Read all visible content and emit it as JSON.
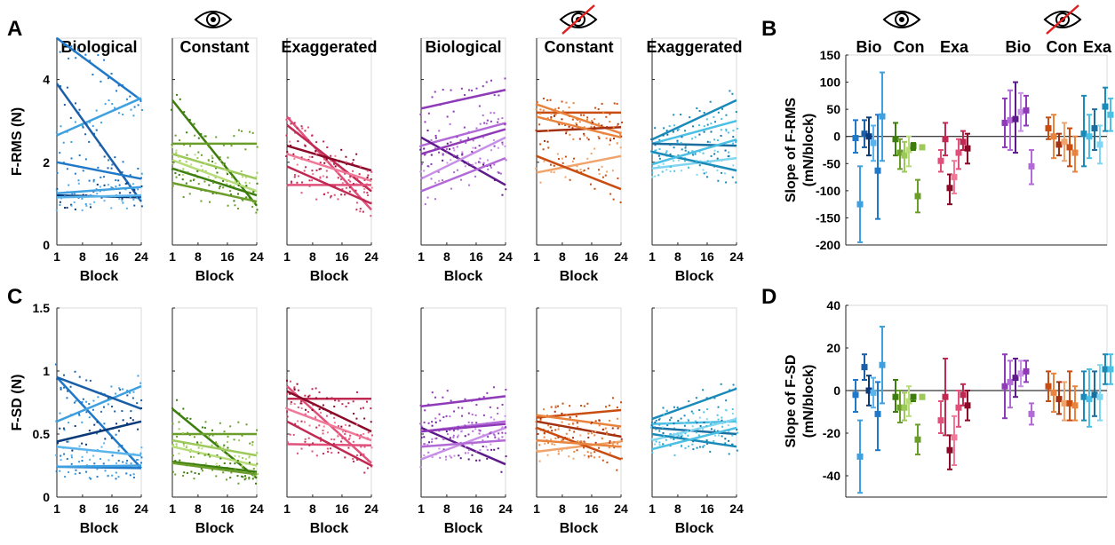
{
  "panel_letters": [
    "A",
    "B",
    "C",
    "D"
  ],
  "icon_names": [
    "eye-icon",
    "eye-crossed-icon"
  ],
  "colors": {
    "bio": [
      "#1f78c8",
      "#3fa0e0",
      "#1b5fa8",
      "#0b3a7a",
      "#5ab4ec"
    ],
    "con": [
      "#3c7d0e",
      "#6b9d2a",
      "#9cc95a",
      "#b8dc7a"
    ],
    "exa": [
      "#e0507a",
      "#c02a52",
      "#8a0a28",
      "#f07898"
    ],
    "bio_nv": [
      "#8f3bb8",
      "#b26ad6",
      "#5e1a8a",
      "#c890e6"
    ],
    "con_nv": [
      "#c94d10",
      "#e8843d",
      "#a33010",
      "#f0a46b"
    ],
    "exa_nv": [
      "#1a8ab8",
      "#4cc0e4",
      "#1a6ea0",
      "#80d6f0"
    ],
    "zero_line": "#000000"
  },
  "chart_data": [
    {
      "panel": "A",
      "type": "scatter",
      "ylabel": "F-RMS (N)",
      "xlabel": "Block",
      "ylim": [
        0,
        5
      ],
      "yticks": [
        "0",
        "2",
        "4"
      ],
      "xticks": [
        "1",
        "8",
        "16",
        "24"
      ],
      "subplots": [
        {
          "title": "Biological",
          "group": "bio",
          "lines": [
            [
              5.0,
              3.5
            ],
            [
              2.65,
              3.55
            ],
            [
              3.9,
              1.05
            ],
            [
              1.2,
              1.15
            ],
            [
              1.15,
              1.2
            ],
            [
              2.0,
              1.6
            ],
            [
              1.25,
              1.4
            ]
          ]
        },
        {
          "title": "Constant",
          "group": "con",
          "lines": [
            [
              3.5,
              0.95
            ],
            [
              2.45,
              2.45
            ],
            [
              2.2,
              1.6
            ],
            [
              2.05,
              1.3
            ],
            [
              1.85,
              1.2
            ],
            [
              1.5,
              1.05
            ]
          ]
        },
        {
          "title": "Exaggerated",
          "group": "exa",
          "lines": [
            [
              3.1,
              0.85
            ],
            [
              2.9,
              1.3
            ],
            [
              2.4,
              1.8
            ],
            [
              2.2,
              1.55
            ],
            [
              1.45,
              1.45
            ],
            [
              1.9,
              1.0
            ]
          ]
        },
        {
          "title": "Biological",
          "group": "bio_nv",
          "lines": [
            [
              3.3,
              3.75
            ],
            [
              2.4,
              2.95
            ],
            [
              2.6,
              1.45
            ],
            [
              1.6,
              2.6
            ],
            [
              2.2,
              2.8
            ],
            [
              1.3,
              2.1
            ]
          ]
        },
        {
          "title": "Constant",
          "group": "con_nv",
          "lines": [
            [
              3.2,
              3.2
            ],
            [
              3.4,
              2.7
            ],
            [
              2.75,
              2.85
            ],
            [
              1.75,
              2.15
            ],
            [
              2.15,
              1.35
            ],
            [
              3.1,
              2.6
            ]
          ]
        },
        {
          "title": "Exaggerated",
          "group": "exa_nv",
          "lines": [
            [
              2.55,
              3.5
            ],
            [
              2.45,
              3.0
            ],
            [
              2.45,
              2.4
            ],
            [
              1.85,
              2.1
            ],
            [
              2.25,
              1.8
            ],
            [
              1.95,
              2.55
            ]
          ]
        }
      ]
    },
    {
      "panel": "C",
      "type": "scatter",
      "ylabel": "F-SD (N)",
      "xlabel": "Block",
      "ylim": [
        0,
        1.5
      ],
      "yticks": [
        "0",
        "0.5",
        "1",
        "1.5"
      ],
      "xticks": [
        "1",
        "8",
        "16",
        "24"
      ],
      "subplots": [
        {
          "title": "",
          "group": "bio",
          "lines": [
            [
              0.95,
              0.23
            ],
            [
              0.6,
              0.88
            ],
            [
              0.95,
              0.7
            ],
            [
              0.44,
              0.6
            ],
            [
              0.4,
              0.33
            ],
            [
              0.24,
              0.23
            ],
            [
              0.24,
              0.25
            ]
          ]
        },
        {
          "title": "",
          "group": "con",
          "lines": [
            [
              0.7,
              0.15
            ],
            [
              0.5,
              0.5
            ],
            [
              0.45,
              0.33
            ],
            [
              0.4,
              0.25
            ],
            [
              0.28,
              0.2
            ],
            [
              0.27,
              0.18
            ]
          ]
        },
        {
          "title": "",
          "group": "exa",
          "lines": [
            [
              0.88,
              0.27
            ],
            [
              0.78,
              0.78
            ],
            [
              0.84,
              0.52
            ],
            [
              0.7,
              0.45
            ],
            [
              0.42,
              0.41
            ],
            [
              0.6,
              0.25
            ]
          ]
        },
        {
          "title": "",
          "group": "bio_nv",
          "lines": [
            [
              0.72,
              0.8
            ],
            [
              0.52,
              0.6
            ],
            [
              0.55,
              0.26
            ],
            [
              0.3,
              0.55
            ],
            [
              0.52,
              0.58
            ],
            [
              0.4,
              0.45
            ]
          ]
        },
        {
          "title": "",
          "group": "con_nv",
          "lines": [
            [
              0.63,
              0.69
            ],
            [
              0.65,
              0.56
            ],
            [
              0.6,
              0.48
            ],
            [
              0.36,
              0.44
            ],
            [
              0.55,
              0.3
            ],
            [
              0.45,
              0.4
            ]
          ]
        },
        {
          "title": "",
          "group": "exa_nv",
          "lines": [
            [
              0.62,
              0.86
            ],
            [
              0.58,
              0.6
            ],
            [
              0.55,
              0.5
            ],
            [
              0.45,
              0.62
            ],
            [
              0.5,
              0.4
            ],
            [
              0.38,
              0.55
            ]
          ]
        }
      ]
    },
    {
      "panel": "B",
      "type": "errorbar",
      "ylabel_line1": "Slope of F-RMS",
      "ylabel_line2": "(mN/block)",
      "ylim": [
        -200,
        150
      ],
      "yticks": [
        "150",
        "100",
        "50",
        "0",
        "-50",
        "-100",
        "-150",
        "-200"
      ],
      "group_labels": [
        "Bio",
        "Con",
        "Exa",
        "Bio",
        "Con",
        "Exa"
      ],
      "groups": [
        {
          "label": "Bio",
          "group": "bio",
          "points": [
            [
              -3,
              30,
              -30
            ],
            [
              -125,
              -55,
              -195
            ],
            [
              5,
              30,
              -20
            ],
            [
              0,
              35,
              -35
            ],
            [
              -12,
              20,
              -45
            ],
            [
              -63,
              40,
              -152
            ],
            [
              37,
              118,
              -45
            ]
          ]
        },
        {
          "label": "Con",
          "group": "con",
          "points": [
            [
              -5,
              25,
              -35
            ],
            [
              -30,
              -5,
              -60
            ],
            [
              -35,
              -10,
              -65
            ],
            [
              -25,
              0,
              -55
            ],
            [
              -18,
              -12,
              -25
            ],
            [
              -110,
              -80,
              -140
            ],
            [
              -20,
              -17,
              -23
            ]
          ]
        },
        {
          "label": "Exa",
          "group": "exa",
          "points": [
            [
              -45,
              -25,
              -65
            ],
            [
              -5,
              25,
              -35
            ],
            [
              -95,
              -70,
              -125
            ],
            [
              -75,
              -45,
              -105
            ],
            [
              -30,
              -5,
              -60
            ],
            [
              -10,
              10,
              -25
            ],
            [
              -22,
              5,
              -50
            ]
          ]
        },
        {
          "label": "Bio",
          "group": "bio_nv",
          "points": [
            [
              25,
              70,
              -20
            ],
            [
              30,
              85,
              -25
            ],
            [
              32,
              100,
              -30
            ],
            [
              45,
              80,
              10
            ],
            [
              48,
              75,
              20
            ],
            [
              -55,
              -25,
              -88
            ]
          ]
        },
        {
          "label": "Con",
          "group": "con_nv",
          "points": [
            [
              15,
              35,
              -5
            ],
            [
              0,
              40,
              -40
            ],
            [
              -15,
              5,
              -35
            ],
            [
              -10,
              25,
              -45
            ],
            [
              -20,
              15,
              -55
            ],
            [
              -30,
              0,
              -65
            ]
          ]
        },
        {
          "label": "Exa",
          "group": "exa_nv",
          "points": [
            [
              5,
              75,
              -55
            ],
            [
              0,
              40,
              -40
            ],
            [
              15,
              50,
              -25
            ],
            [
              -15,
              20,
              -50
            ],
            [
              55,
              90,
              10
            ],
            [
              40,
              70,
              10
            ]
          ]
        }
      ]
    },
    {
      "panel": "D",
      "type": "errorbar",
      "ylabel_line1": "Slope of F-SD",
      "ylabel_line2": "(mN/block)",
      "ylim": [
        -50,
        40
      ],
      "yticks": [
        "40",
        "20",
        "0",
        "-20",
        "-40"
      ],
      "group_labels": [],
      "groups": [
        {
          "label": "Bio",
          "group": "bio",
          "points": [
            [
              -2,
              5,
              -10
            ],
            [
              -31,
              -14,
              -48
            ],
            [
              11,
              17,
              5
            ],
            [
              0,
              7,
              -7
            ],
            [
              -1,
              6,
              -8
            ],
            [
              -11,
              4,
              -28
            ],
            [
              12,
              30,
              -6
            ]
          ]
        },
        {
          "label": "Con",
          "group": "con",
          "points": [
            [
              -3,
              5,
              -10
            ],
            [
              -8,
              0,
              -15
            ],
            [
              -8,
              -1,
              -14
            ],
            [
              -5,
              2,
              -12
            ],
            [
              -3,
              -2,
              -5
            ],
            [
              -23,
              -16,
              -30
            ],
            [
              -3,
              -2,
              -4
            ]
          ]
        },
        {
          "label": "Exa",
          "group": "exa",
          "points": [
            [
              -14,
              -5,
              -20
            ],
            [
              -3,
              15,
              -21
            ],
            [
              -28,
              -21,
              -37
            ],
            [
              -22,
              -12,
              -35
            ],
            [
              -8,
              0,
              -17
            ],
            [
              -2,
              3,
              -7
            ],
            [
              -7,
              0,
              -14
            ]
          ]
        },
        {
          "label": "Bio",
          "group": "bio_nv",
          "points": [
            [
              2,
              17,
              -13
            ],
            [
              4,
              14,
              -8
            ],
            [
              6,
              15,
              -3
            ],
            [
              8,
              14,
              2
            ],
            [
              9,
              14,
              4
            ],
            [
              -11,
              -6,
              -16
            ]
          ]
        },
        {
          "label": "Con",
          "group": "con_nv",
          "points": [
            [
              2,
              9,
              -5
            ],
            [
              -1,
              8,
              -10
            ],
            [
              -4,
              4,
              -11
            ],
            [
              -6,
              4,
              -14
            ],
            [
              -6,
              9,
              -14
            ],
            [
              -7,
              2,
              -14
            ]
          ]
        },
        {
          "label": "Exa",
          "group": "exa_nv",
          "points": [
            [
              -3,
              9,
              -14
            ],
            [
              -4,
              10,
              -17
            ],
            [
              -2,
              9,
              -12
            ],
            [
              -3,
              12,
              -14
            ],
            [
              10,
              17,
              3
            ],
            [
              10,
              17,
              3
            ]
          ]
        }
      ]
    }
  ]
}
